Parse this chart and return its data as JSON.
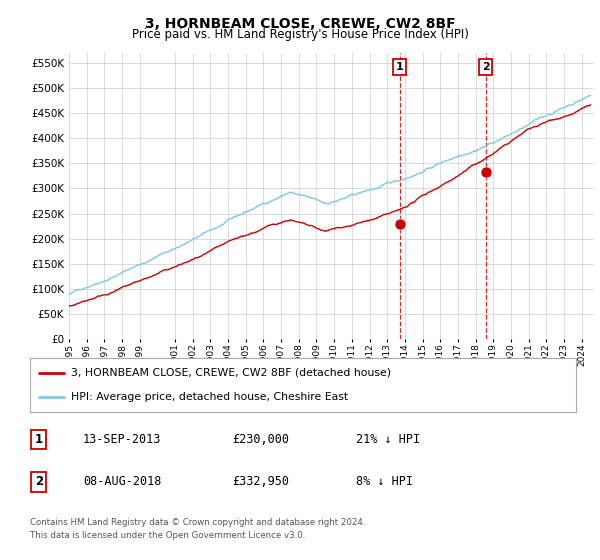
{
  "title": "3, HORNBEAM CLOSE, CREWE, CW2 8BF",
  "subtitle": "Price paid vs. HM Land Registry's House Price Index (HPI)",
  "title_fontsize": 10,
  "subtitle_fontsize": 8.5,
  "ylim": [
    0,
    570000
  ],
  "yticks": [
    0,
    50000,
    100000,
    150000,
    200000,
    250000,
    300000,
    350000,
    400000,
    450000,
    500000,
    550000
  ],
  "ytick_labels": [
    "£0",
    "£50K",
    "£100K",
    "£150K",
    "£200K",
    "£250K",
    "£300K",
    "£350K",
    "£400K",
    "£450K",
    "£500K",
    "£550K"
  ],
  "xlim_start": 1995.0,
  "xlim_end": 2024.7,
  "xtick_years": [
    1995,
    1996,
    1997,
    1998,
    1999,
    2001,
    2002,
    2003,
    2004,
    2005,
    2006,
    2007,
    2008,
    2009,
    2010,
    2011,
    2012,
    2013,
    2014,
    2015,
    2016,
    2017,
    2018,
    2019,
    2020,
    2021,
    2022,
    2023,
    2024
  ],
  "hpi_color": "#7ec8e3",
  "price_color": "#cc0000",
  "marker_color": "#cc0000",
  "vline_color": "#cc0000",
  "grid_color": "#cccccc",
  "background_color": "#ffffff",
  "sale1_x": 2013.71,
  "sale1_y": 230000,
  "sale1_label": "1",
  "sale1_date": "13-SEP-2013",
  "sale1_price": "£230,000",
  "sale1_hpi": "21% ↓ HPI",
  "sale2_x": 2018.58,
  "sale2_y": 332950,
  "sale2_label": "2",
  "sale2_date": "08-AUG-2018",
  "sale2_price": "£332,950",
  "sale2_hpi": "8% ↓ HPI",
  "legend_line1": "3, HORNBEAM CLOSE, CREWE, CW2 8BF (detached house)",
  "legend_line2": "HPI: Average price, detached house, Cheshire East",
  "footer": "Contains HM Land Registry data © Crown copyright and database right 2024.\nThis data is licensed under the Open Government Licence v3.0."
}
